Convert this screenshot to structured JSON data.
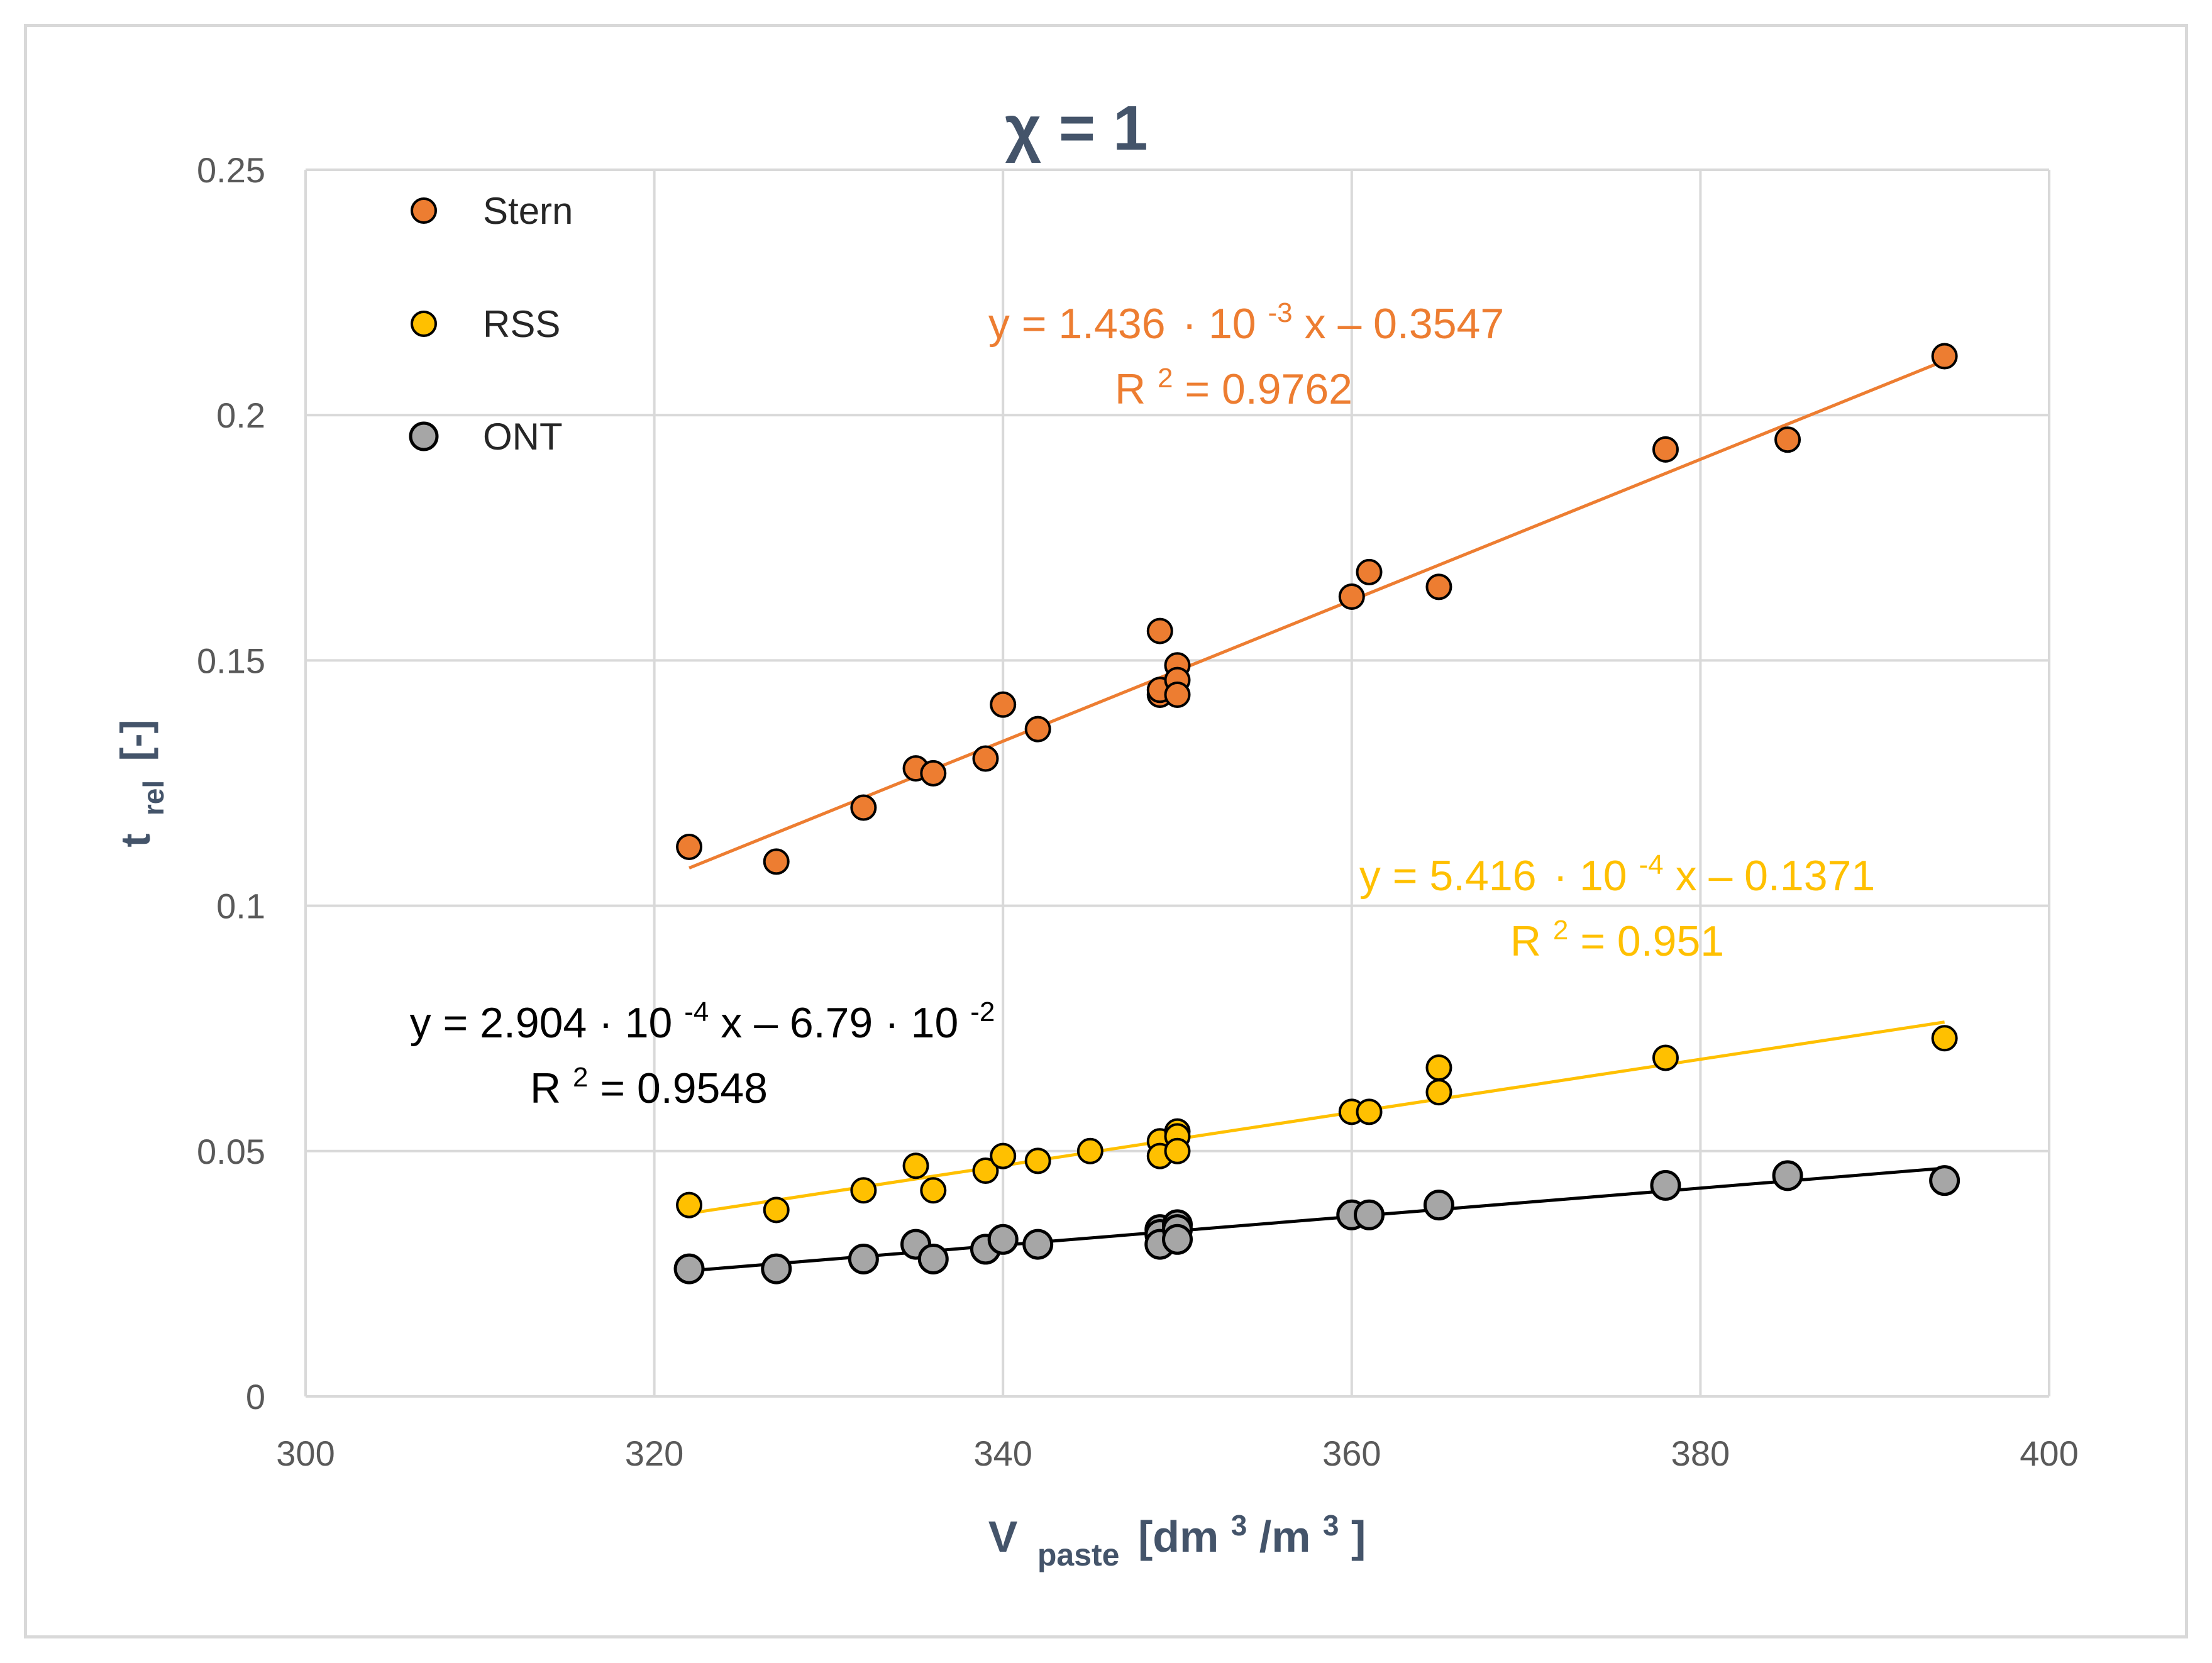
{
  "chart_data": {
    "type": "scatter",
    "title": "χ = 1",
    "xlabel": {
      "main": "V",
      "sub": "paste",
      "unit_pre": "[dm",
      "unit_sup1": "3",
      "unit_mid": "/m",
      "unit_sup2": "3",
      "unit_post": "]"
    },
    "ylabel": {
      "main": "t",
      "sub": "rel",
      "unit": "[-]"
    },
    "xlim": [
      300,
      400
    ],
    "ylim": [
      0,
      0.25
    ],
    "xticks": [
      300,
      320,
      340,
      360,
      380,
      400
    ],
    "xtick_labels": [
      "300",
      "320",
      "340",
      "360",
      "380",
      "400"
    ],
    "yticks": [
      0,
      0.05,
      0.1,
      0.15,
      0.2,
      0.25
    ],
    "ytick_labels": [
      "0",
      "0.05",
      "0.1",
      "0.15",
      "0.2",
      "0.25"
    ],
    "grid": true,
    "legend_position": "top-left",
    "series": [
      {
        "name": "Stern",
        "color": "#ed7d31",
        "line_color": "#ed7d31",
        "trend": {
          "slope": 0.001436,
          "intercept": -0.3547,
          "x_range": [
            322,
            394
          ]
        },
        "equation": {
          "a": "y = 1.436",
          "dot": "·",
          "b": "10",
          "exp": "-3",
          "c": " x – 0.3547"
        },
        "r2": {
          "pre": "R",
          "sup": "2",
          "post": " = 0.9762"
        },
        "points": [
          [
            322,
            0.112
          ],
          [
            327,
            0.109
          ],
          [
            332,
            0.12
          ],
          [
            335,
            0.128
          ],
          [
            336,
            0.127
          ],
          [
            339,
            0.13
          ],
          [
            340,
            0.141
          ],
          [
            342,
            0.136
          ],
          [
            349,
            0.156
          ],
          [
            349,
            0.143
          ],
          [
            349,
            0.144
          ],
          [
            350,
            0.149
          ],
          [
            350,
            0.146
          ],
          [
            350,
            0.143
          ],
          [
            360,
            0.163
          ],
          [
            361,
            0.168
          ],
          [
            365,
            0.165
          ],
          [
            378,
            0.193
          ],
          [
            385,
            0.195
          ],
          [
            394,
            0.212
          ]
        ]
      },
      {
        "name": "RSS",
        "color": "#ffc000",
        "line_color": "#ffc000",
        "trend": {
          "slope": 0.0005416,
          "intercept": -0.1371,
          "x_range": [
            322,
            394
          ]
        },
        "equation": {
          "a": "y = 5.416",
          "dot": "·",
          "b": "10",
          "exp": "-4",
          "c": " x – 0.1371"
        },
        "r2": {
          "pre": "R",
          "sup": "2",
          "post": " = 0.951"
        },
        "points": [
          [
            322,
            0.039
          ],
          [
            327,
            0.038
          ],
          [
            332,
            0.042
          ],
          [
            335,
            0.047
          ],
          [
            336,
            0.042
          ],
          [
            339,
            0.046
          ],
          [
            340,
            0.049
          ],
          [
            342,
            0.048
          ],
          [
            345,
            0.05
          ],
          [
            349,
            0.052
          ],
          [
            349,
            0.049
          ],
          [
            350,
            0.054
          ],
          [
            350,
            0.053
          ],
          [
            350,
            0.05
          ],
          [
            360,
            0.058
          ],
          [
            361,
            0.058
          ],
          [
            365,
            0.067
          ],
          [
            365,
            0.062
          ],
          [
            378,
            0.069
          ],
          [
            394,
            0.073
          ]
        ]
      },
      {
        "name": "ONT",
        "color": "#a6a6a6",
        "line_color": "#000000",
        "trend": {
          "slope": 0.0002904,
          "intercept": -0.0679,
          "x_range": [
            322,
            394
          ]
        },
        "equation": {
          "a": "y = 2.904 · 10",
          "exp": "-4",
          "c": " x – 6.79 · 10",
          "exp2": "-2"
        },
        "r2": {
          "pre": "R",
          "sup": "2",
          "post": " = 0.9548"
        },
        "points": [
          [
            322,
            0.026
          ],
          [
            327,
            0.026
          ],
          [
            332,
            0.028
          ],
          [
            335,
            0.031
          ],
          [
            336,
            0.028
          ],
          [
            339,
            0.03
          ],
          [
            340,
            0.032
          ],
          [
            342,
            0.031
          ],
          [
            349,
            0.034
          ],
          [
            349,
            0.033
          ],
          [
            349,
            0.031
          ],
          [
            350,
            0.035
          ],
          [
            350,
            0.034
          ],
          [
            350,
            0.032
          ],
          [
            360,
            0.037
          ],
          [
            361,
            0.037
          ],
          [
            365,
            0.039
          ],
          [
            378,
            0.043
          ],
          [
            385,
            0.045
          ],
          [
            394,
            0.044
          ]
        ]
      }
    ]
  }
}
